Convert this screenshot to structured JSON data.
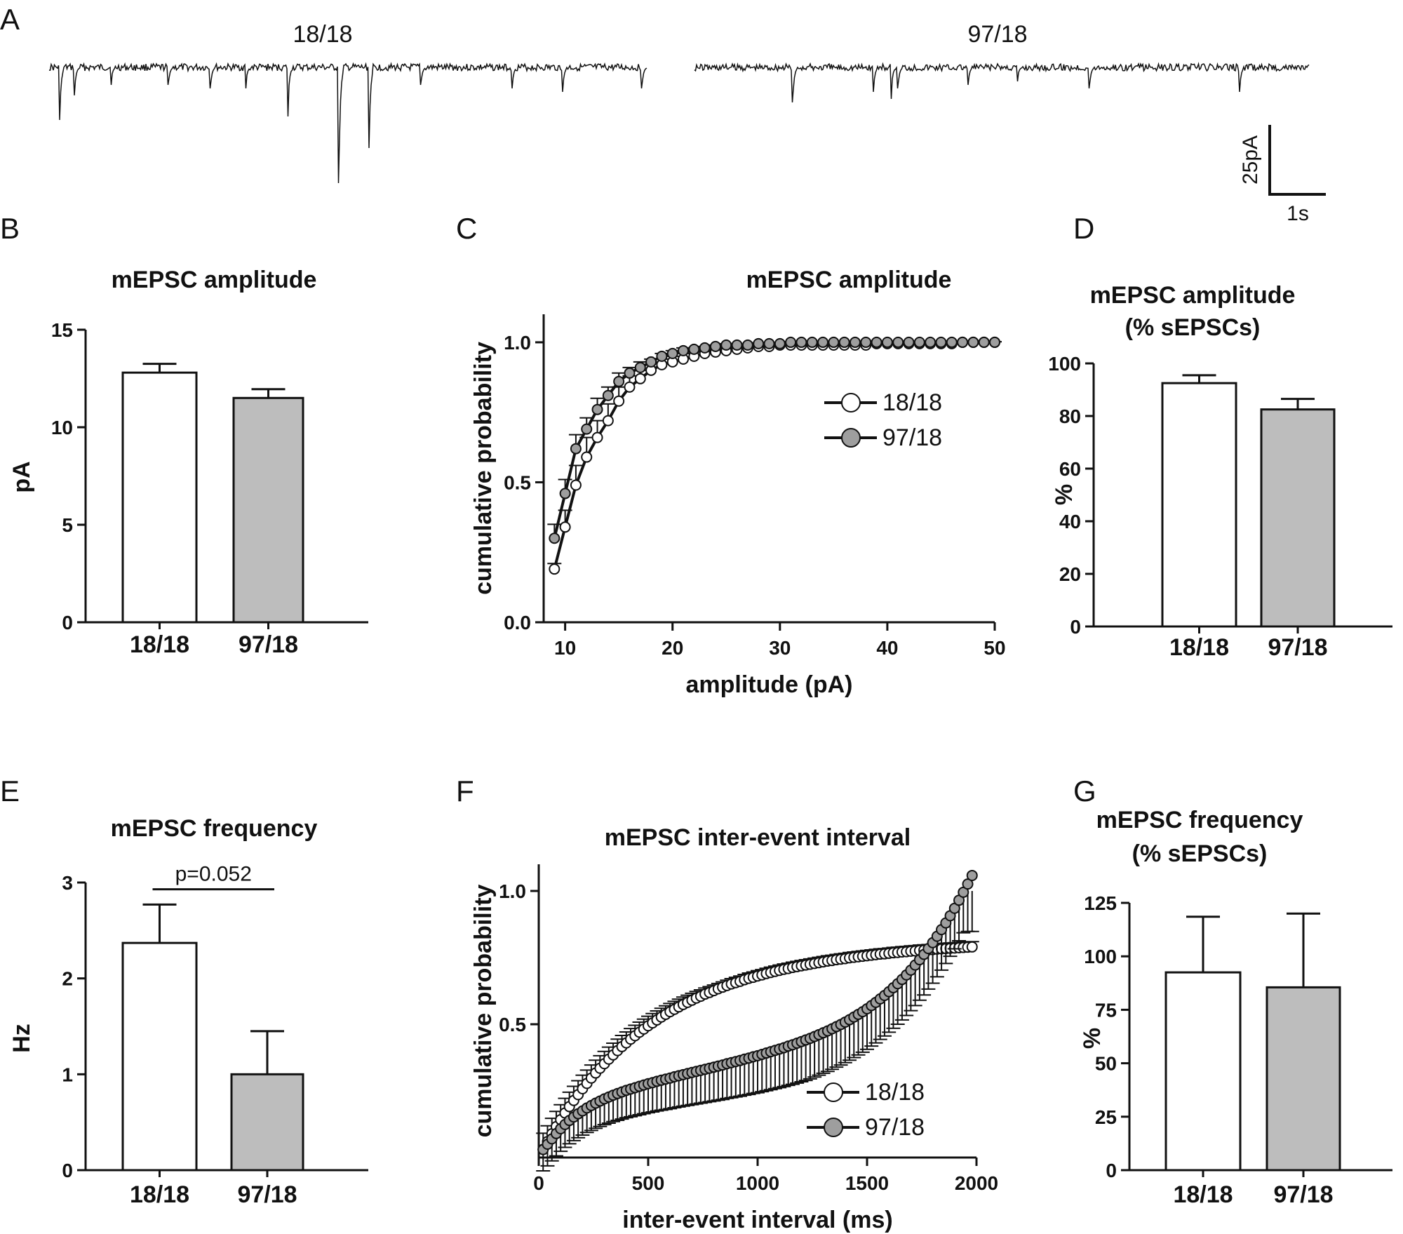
{
  "colors": {
    "white_fill": "#ffffff",
    "gray_fill": "#bdbdbd",
    "gray_marker": "#9e9e9e",
    "stroke": "#111111",
    "trace": "#111111"
  },
  "panel_A": {
    "letter": "A",
    "traces": [
      {
        "label": "18/18"
      },
      {
        "label": "97/18"
      }
    ],
    "scale_bar": {
      "y_label": "25pA",
      "x_label": "1s"
    }
  },
  "chart_data": [
    {
      "panel": "B",
      "type": "bar",
      "title": "mEPSC amplitude",
      "xlabel": "",
      "ylabel": "pA",
      "categories": [
        "18/18",
        "97/18"
      ],
      "values": [
        12.8,
        11.5
      ],
      "errors": [
        0.45,
        0.45
      ],
      "ylim": [
        0,
        15
      ],
      "yticks": [
        0,
        5,
        10,
        15
      ],
      "fills": [
        "#ffffff",
        "#bdbdbd"
      ],
      "grid": false
    },
    {
      "panel": "C",
      "type": "line",
      "title": "mEPSC amplitude",
      "xlabel": "amplitude (pA)",
      "ylabel": "cumulative probability",
      "xlim": [
        8,
        50
      ],
      "ylim": [
        0,
        1.1
      ],
      "xticks": [
        10,
        20,
        30,
        40,
        50
      ],
      "yticks": [
        "0.0",
        "0.5",
        "1.0"
      ],
      "legend_position": "center-right",
      "grid": false,
      "series": [
        {
          "name": "18/18",
          "marker": "open",
          "x": [
            9,
            10,
            11,
            12,
            13,
            14,
            15,
            16,
            17,
            18,
            19,
            20,
            21,
            22,
            23,
            24,
            25,
            26,
            27,
            28,
            29,
            30,
            31,
            32,
            33,
            34,
            35,
            36,
            37,
            38,
            39,
            40,
            41,
            42,
            43,
            44,
            45,
            46,
            47,
            48,
            49,
            50
          ],
          "y": [
            0.19,
            0.34,
            0.49,
            0.59,
            0.66,
            0.72,
            0.79,
            0.84,
            0.87,
            0.9,
            0.92,
            0.93,
            0.94,
            0.95,
            0.96,
            0.965,
            0.97,
            0.975,
            0.98,
            0.985,
            0.985,
            0.99,
            0.99,
            0.99,
            0.99,
            0.99,
            0.99,
            0.99,
            0.99,
            0.99,
            0.995,
            0.995,
            0.995,
            0.995,
            0.995,
            0.995,
            0.995,
            0.995,
            1.0,
            1.0,
            1.0,
            1.0
          ],
          "err": [
            0.02,
            0.06,
            0.07,
            0.07,
            0.06,
            0.06,
            0.05,
            0.04,
            0.03,
            0.03,
            0.02,
            0.02,
            0.02,
            0.015,
            0.01,
            0.01,
            0.01,
            0.01,
            0.005,
            0.005,
            0.005,
            0.005,
            0.005,
            0.005,
            0.005,
            0.005,
            0.005,
            0.005,
            0.005,
            0.005,
            0.003,
            0.003,
            0.003,
            0.003,
            0.003,
            0.003,
            0.003,
            0.003,
            0.002,
            0.002,
            0.002,
            0.002
          ]
        },
        {
          "name": "97/18",
          "marker": "filled",
          "x": [
            9,
            10,
            11,
            12,
            13,
            14,
            15,
            16,
            17,
            18,
            19,
            20,
            21,
            22,
            23,
            24,
            25,
            26,
            27,
            28,
            29,
            30,
            31,
            32,
            33,
            34,
            35,
            36,
            37,
            38,
            39,
            40,
            41,
            42,
            43,
            44,
            45,
            46,
            47,
            48,
            49,
            50
          ],
          "y": [
            0.3,
            0.46,
            0.62,
            0.69,
            0.76,
            0.81,
            0.86,
            0.89,
            0.91,
            0.93,
            0.95,
            0.96,
            0.97,
            0.975,
            0.98,
            0.985,
            0.99,
            0.99,
            0.99,
            0.995,
            0.995,
            0.995,
            1.0,
            1.0,
            1.0,
            1.0,
            1.0,
            1.0,
            1.0,
            1.0,
            1.0,
            1.0,
            1.0,
            1.0,
            1.0,
            1.0,
            1.0,
            1.0,
            1.0,
            1.0,
            1.0,
            1.0
          ],
          "err": [
            0.05,
            0.05,
            0.05,
            0.04,
            0.04,
            0.03,
            0.03,
            0.02,
            0.02,
            0.01,
            0.01,
            0.01,
            0.01,
            0.005,
            0.005,
            0.005,
            0.005,
            0.003,
            0.003,
            0.003,
            0.003,
            0.003,
            0.002,
            0.002,
            0.002,
            0.002,
            0.002,
            0.002,
            0.002,
            0.002,
            0.002,
            0.002,
            0.002,
            0.002,
            0.002,
            0.002,
            0.002,
            0.002,
            0.002,
            0.002,
            0.002,
            0.002
          ]
        }
      ]
    },
    {
      "panel": "D",
      "type": "bar",
      "title": "mEPSC amplitude",
      "subtitle": "(% sEPSCs)",
      "xlabel": "",
      "ylabel": "%",
      "categories": [
        "18/18",
        "97/18"
      ],
      "values": [
        92.5,
        82.5
      ],
      "errors": [
        3.0,
        4.0
      ],
      "ylim": [
        0,
        100
      ],
      "yticks": [
        0,
        20,
        40,
        60,
        80,
        100
      ],
      "fills": [
        "#ffffff",
        "#bdbdbd"
      ],
      "grid": false
    },
    {
      "panel": "E",
      "type": "bar",
      "title": "mEPSC frequency",
      "xlabel": "",
      "ylabel": "Hz",
      "categories": [
        "18/18",
        "97/18"
      ],
      "values": [
        2.37,
        1.0
      ],
      "errors": [
        0.4,
        0.45
      ],
      "ylim": [
        0,
        3
      ],
      "yticks": [
        0,
        1,
        2,
        3
      ],
      "fills": [
        "#ffffff",
        "#bdbdbd"
      ],
      "grid": false,
      "annotation": {
        "text": "p=0.052",
        "y": 2.93
      }
    },
    {
      "panel": "F",
      "type": "line",
      "title": "mEPSC inter-event interval",
      "xlabel": "inter-event interval (ms)",
      "ylabel": "cumulative probability",
      "xlim": [
        0,
        2000
      ],
      "ylim": [
        0,
        1.1
      ],
      "xticks": [
        0,
        500,
        1000,
        1500,
        2000
      ],
      "yticks": [
        "0.5",
        "1.0"
      ],
      "legend_position": "bottom-right",
      "grid": false,
      "series": [
        {
          "name": "18/18",
          "marker": "open",
          "x": [
            20,
            40,
            60,
            80,
            100,
            120,
            140,
            160,
            180,
            200,
            220,
            240,
            260,
            280,
            300,
            320,
            340,
            360,
            380,
            400,
            420,
            440,
            460,
            480,
            500,
            520,
            540,
            560,
            580,
            600,
            620,
            640,
            660,
            680,
            700,
            720,
            740,
            760,
            780,
            800,
            820,
            840,
            860,
            880,
            900,
            920,
            940,
            960,
            980,
            1000,
            1020,
            1040,
            1060,
            1080,
            1100,
            1120,
            1140,
            1160,
            1180,
            1200,
            1220,
            1240,
            1260,
            1280,
            1300,
            1320,
            1340,
            1360,
            1380,
            1400,
            1420,
            1440,
            1460,
            1480,
            1500,
            1520,
            1540,
            1560,
            1580,
            1600,
            1620,
            1640,
            1660,
            1680,
            1700,
            1720,
            1740,
            1760,
            1780,
            1800,
            1820,
            1840,
            1860,
            1880,
            1900,
            1920,
            1940,
            1960,
            1980
          ],
          "y": [
            0.031,
            0.06,
            0.089,
            0.116,
            0.142,
            0.167,
            0.191,
            0.214,
            0.236,
            0.258,
            0.278,
            0.298,
            0.317,
            0.335,
            0.352,
            0.369,
            0.385,
            0.401,
            0.416,
            0.43,
            0.444,
            0.457,
            0.47,
            0.482,
            0.494,
            0.505,
            0.516,
            0.527,
            0.537,
            0.547,
            0.556,
            0.565,
            0.574,
            0.582,
            0.59,
            0.598,
            0.605,
            0.613,
            0.619,
            0.626,
            0.633,
            0.639,
            0.645,
            0.651,
            0.656,
            0.661,
            0.667,
            0.672,
            0.676,
            0.681,
            0.685,
            0.69,
            0.694,
            0.698,
            0.702,
            0.706,
            0.709,
            0.713,
            0.716,
            0.719,
            0.722,
            0.725,
            0.728,
            0.731,
            0.734,
            0.737,
            0.739,
            0.742,
            0.744,
            0.746,
            0.749,
            0.751,
            0.753,
            0.755,
            0.757,
            0.759,
            0.761,
            0.763,
            0.764,
            0.766,
            0.768,
            0.769,
            0.771,
            0.772,
            0.774,
            0.775,
            0.777,
            0.778,
            0.779,
            0.78,
            0.782,
            0.783,
            0.784,
            0.785,
            0.786,
            0.787,
            0.788,
            0.789,
            0.79
          ]
        },
        {
          "name": "97/18",
          "marker": "filled",
          "x": [
            20,
            40,
            60,
            80,
            100,
            120,
            140,
            160,
            180,
            200,
            220,
            240,
            260,
            280,
            300,
            320,
            340,
            360,
            380,
            400,
            420,
            440,
            460,
            480,
            500,
            520,
            540,
            560,
            580,
            600,
            620,
            640,
            660,
            680,
            700,
            720,
            740,
            760,
            780,
            800,
            820,
            840,
            860,
            880,
            900,
            920,
            940,
            960,
            980,
            1000,
            1020,
            1040,
            1060,
            1080,
            1100,
            1120,
            1140,
            1160,
            1180,
            1200,
            1220,
            1240,
            1260,
            1280,
            1300,
            1320,
            1340,
            1360,
            1380,
            1400,
            1420,
            1440,
            1460,
            1480,
            1500,
            1520,
            1540,
            1560,
            1580,
            1600,
            1620,
            1640,
            1660,
            1680,
            1700,
            1720,
            1740,
            1760,
            1780,
            1800,
            1820,
            1840,
            1860,
            1880,
            1900,
            1920,
            1940,
            1960,
            1980
          ],
          "y": [
            0.03,
            0.05,
            0.07,
            0.09,
            0.108,
            0.124,
            0.139,
            0.152,
            0.164,
            0.175,
            0.186,
            0.195,
            0.204,
            0.212,
            0.22,
            0.227,
            0.234,
            0.24,
            0.246,
            0.252,
            0.257,
            0.262,
            0.267,
            0.272,
            0.277,
            0.281,
            0.286,
            0.29,
            0.294,
            0.298,
            0.303,
            0.307,
            0.311,
            0.315,
            0.319,
            0.323,
            0.327,
            0.331,
            0.335,
            0.339,
            0.343,
            0.347,
            0.352,
            0.356,
            0.36,
            0.364,
            0.369,
            0.373,
            0.378,
            0.382,
            0.387,
            0.392,
            0.397,
            0.402,
            0.407,
            0.412,
            0.418,
            0.423,
            0.429,
            0.435,
            0.441,
            0.447,
            0.454,
            0.461,
            0.468,
            0.475,
            0.483,
            0.491,
            0.499,
            0.508,
            0.517,
            0.527,
            0.537,
            0.547,
            0.558,
            0.57,
            0.582,
            0.595,
            0.608,
            0.622,
            0.637,
            0.652,
            0.668,
            0.685,
            0.703,
            0.722,
            0.742,
            0.762,
            0.784,
            0.806,
            0.83,
            0.855,
            0.88,
            0.907,
            0.935,
            0.965,
            0.995,
            1.026,
            1.058
          ]
        }
      ]
    },
    {
      "panel": "G",
      "type": "bar",
      "title": "mEPSC frequency",
      "subtitle": "(% sEPSCs)",
      "xlabel": "",
      "ylabel": "%",
      "categories": [
        "18/18",
        "97/18"
      ],
      "values": [
        92.5,
        85.5
      ],
      "errors": [
        26.0,
        34.5
      ],
      "ylim": [
        0,
        125
      ],
      "yticks": [
        0,
        25,
        50,
        75,
        100,
        125
      ],
      "fills": [
        "#ffffff",
        "#bdbdbd"
      ],
      "grid": false
    }
  ]
}
